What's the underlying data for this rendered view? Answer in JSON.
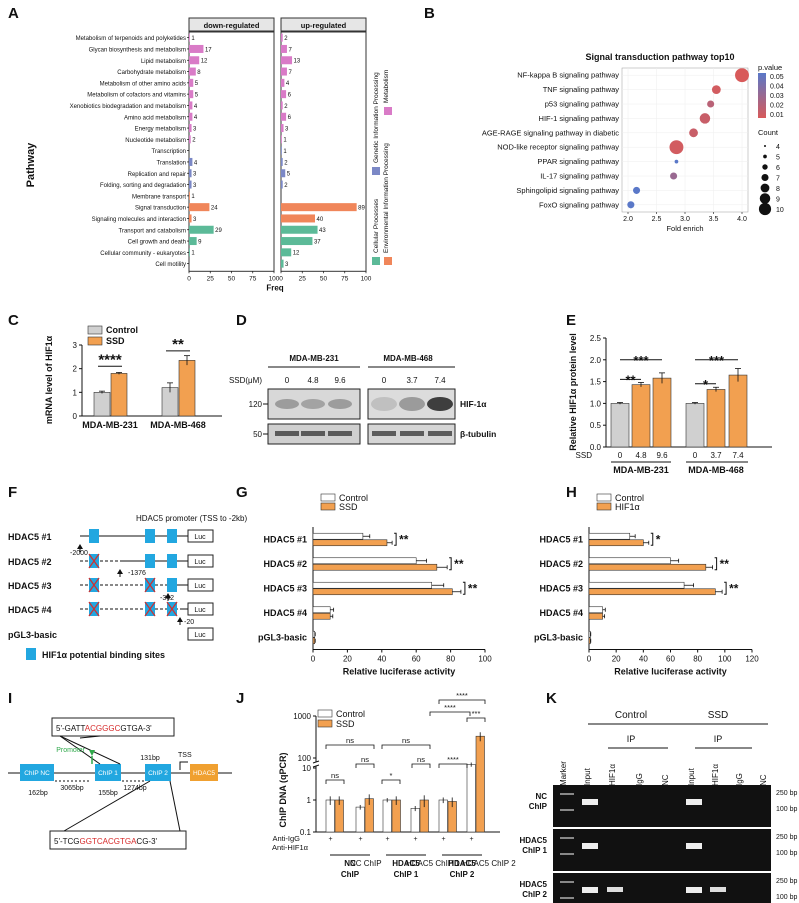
{
  "panels": {
    "A": "A",
    "B": "B",
    "C": "C",
    "D": "D",
    "E": "E",
    "F": "F",
    "G": "G",
    "H": "H",
    "I": "I",
    "J": "J",
    "K": "K"
  },
  "colors": {
    "metabolism": "#d97bc7",
    "genetic": "#7b88c6",
    "environmental": "#f0865a",
    "cellular": "#5cba98",
    "control": "#d0d0d0",
    "ssd": "#f2a050",
    "hif": "#f2a050"
  },
  "chart_data": [
    {
      "id": "A",
      "type": "bar",
      "title": "",
      "facets": [
        "down-regulated",
        "up-regulated"
      ],
      "ylabel": "Pathway",
      "xlabel": "Freq",
      "xticks": [
        "0",
        "25",
        "50",
        "75",
        "100"
      ],
      "categories": [
        "Metabolism of terpenoids and polyketides",
        "Glycan biosynthesis and metabolism",
        "Lipid metabolism",
        "Carbohydrate metabolism",
        "Metabolism of other amino acids",
        "Metabolism of cofactors and vitamins",
        "Xenobiotics biodegradation and metabolism",
        "Amino acid metabolism",
        "Energy metabolism",
        "Nucleotide metabolism",
        "Transcription",
        "Translation",
        "Replication and repair",
        "Folding, sorting and degradation",
        "Membrane transport",
        "Signal transduction",
        "Signaling molecules and interaction",
        "Transport and catabolism",
        "Cell growth and death",
        "Cellular community - eukaryotes",
        "Cell motility"
      ],
      "groups": [
        "M",
        "M",
        "M",
        "M",
        "M",
        "M",
        "M",
        "M",
        "M",
        "M",
        "G",
        "G",
        "G",
        "G",
        "E",
        "E",
        "E",
        "C",
        "C",
        "C",
        "C"
      ],
      "series": [
        {
          "name": "down-regulated",
          "values": [
            1,
            17,
            12,
            8,
            5,
            5,
            4,
            4,
            3,
            2,
            null,
            4,
            3,
            3,
            1,
            24,
            3,
            29,
            9,
            1,
            null
          ],
          "labels": [
            "1",
            "17",
            "12",
            "8",
            "5",
            "5",
            "4",
            "4",
            "3",
            "2",
            "",
            "4",
            "3",
            "3",
            "1",
            "24",
            "3",
            "29",
            "9",
            "1",
            ""
          ]
        },
        {
          "name": "up-regulated",
          "values": [
            2,
            7,
            13,
            7,
            4,
            6,
            2,
            6,
            3,
            1,
            1,
            2,
            5,
            2,
            null,
            89,
            40,
            43,
            37,
            12,
            3
          ],
          "labels": [
            "2",
            "7",
            "13",
            "7",
            "4",
            "6",
            "2",
            "6",
            "3",
            "1",
            "1",
            "2",
            "5",
            "2",
            "",
            "89",
            "40",
            "43",
            "37",
            "12",
            "3"
          ]
        }
      ],
      "legend": [
        "Metabolism",
        "Genetic Information Processing",
        "Environmental Information Processing",
        "Cellular Processes"
      ]
    },
    {
      "id": "B",
      "type": "scatter",
      "title": "Signal transduction pathway top10",
      "xlabel": "Fold enrich",
      "xticks": [
        "2.0",
        "2.5",
        "3.0",
        "3.5",
        "4.0"
      ],
      "xlim": [
        2.0,
        4.0
      ],
      "categories": [
        "NF-kappa B signaling pathway",
        "TNF signaling pathway",
        "p53 signaling pathway",
        "HIF-1 signaling pathway",
        "AGE-RAGE signaling pathway in diabetic",
        "NOD-like receptor signaling pathway",
        "PPAR signaling pathway",
        "IL-17 signaling pathway",
        "Sphingolipid signaling pathway",
        "FoxO signaling pathway"
      ],
      "x": [
        4.0,
        3.55,
        3.45,
        3.35,
        3.15,
        2.85,
        2.85,
        2.8,
        2.15,
        2.05
      ],
      "count": [
        10,
        7,
        6,
        8,
        7,
        10,
        4,
        6,
        6,
        6
      ],
      "p": [
        0.01,
        0.012,
        0.02,
        0.015,
        0.015,
        0.012,
        0.05,
        0.03,
        0.05,
        0.05
      ],
      "legend_p_title": "p.value",
      "legend_p": [
        "0.05",
        "0.04",
        "0.03",
        "0.02",
        "0.01"
      ],
      "legend_count_title": "Count",
      "legend_count": [
        "4",
        "5",
        "6",
        "7",
        "8",
        "9",
        "10"
      ]
    },
    {
      "id": "C",
      "type": "bar",
      "ylabel": "mRNA level of HIF1α",
      "categories": [
        "MDA-MB-231",
        "MDA-MB-468"
      ],
      "ylim": [
        0,
        3
      ],
      "yticks": [
        "0",
        "1",
        "2",
        "3"
      ],
      "series": [
        {
          "name": "Control",
          "values": [
            1.0,
            1.2
          ],
          "err": [
            0.05,
            0.2
          ]
        },
        {
          "name": "SSD",
          "values": [
            1.8,
            2.35
          ],
          "err": [
            0.04,
            0.2
          ]
        }
      ],
      "sig": [
        "****",
        "**"
      ]
    },
    {
      "id": "E",
      "type": "bar",
      "ylabel": "Relative HIF1α protein level",
      "ylim": [
        0,
        2.5
      ],
      "yticks": [
        "0.0",
        "0.5",
        "1.0",
        "1.5",
        "2.0",
        "2.5"
      ],
      "xrowlabel": "SSD",
      "groups": [
        "MDA-MB-231",
        "MDA-MB-468"
      ],
      "categories": [
        "0",
        "4.8",
        "9.6",
        "0",
        "3.7",
        "7.4"
      ],
      "values": [
        1.0,
        1.43,
        1.58,
        1.0,
        1.32,
        1.65
      ],
      "err": [
        0.02,
        0.05,
        0.12,
        0.02,
        0.05,
        0.15
      ],
      "sig": [
        "**",
        "***",
        "*",
        "***"
      ]
    },
    {
      "id": "G",
      "type": "bar",
      "orientation": "horizontal",
      "xlabel": "Relative luciferase activity",
      "xticks": [
        "0",
        "20",
        "40",
        "60",
        "80",
        "100"
      ],
      "xlim": [
        0,
        100
      ],
      "categories": [
        "HDAC5 #1",
        "HDAC5 #2",
        "HDAC5 #3",
        "HDAC5 #4",
        "pGL3-basic"
      ],
      "series": [
        {
          "name": "Control",
          "values": [
            29,
            60,
            69,
            10,
            1
          ],
          "err": [
            4,
            6,
            7,
            2,
            0.3
          ]
        },
        {
          "name": "SSD",
          "values": [
            43,
            72,
            81,
            10,
            1
          ],
          "err": [
            3,
            6,
            5,
            1.5,
            0.3
          ]
        }
      ],
      "sig": [
        "**",
        "**",
        "**",
        "",
        ""
      ]
    },
    {
      "id": "H",
      "type": "bar",
      "orientation": "horizontal",
      "xlabel": "Relative luciferase activity",
      "xticks": [
        "0",
        "20",
        "40",
        "60",
        "80",
        "100",
        "120"
      ],
      "xlim": [
        0,
        120
      ],
      "categories": [
        "HDAC5 #1",
        "HDAC5 #2",
        "HDAC5 #3",
        "HDAC5 #4",
        "pGL3-basic"
      ],
      "series": [
        {
          "name": "Control",
          "values": [
            30,
            60,
            70,
            10,
            1
          ],
          "err": [
            4,
            6,
            7,
            2,
            0.3
          ]
        },
        {
          "name": "HIF1α",
          "values": [
            40,
            86,
            93,
            10,
            1
          ],
          "err": [
            4,
            5,
            5,
            1.5,
            0.3
          ]
        }
      ],
      "sig": [
        "*",
        "**",
        "**",
        "",
        ""
      ]
    },
    {
      "id": "J",
      "type": "bar",
      "ylabel": "ChIP DNA (qPCR)",
      "yscale": "log-broken",
      "yticks": [
        "0.1",
        "1",
        "10",
        "100",
        "1000"
      ],
      "groups": [
        "NC ChIP",
        "HDAC5 ChIP 1",
        "HDAC5 ChIP 2"
      ],
      "rowlabels": [
        "Anti-IgG",
        "Anti-HIF1α"
      ],
      "series": [
        {
          "name": "Control",
          "values": [
            1.0,
            0.6,
            1.0,
            0.55,
            1.0,
            70
          ],
          "err": [
            0.3,
            0.1,
            0.15,
            0.1,
            0.2,
            8
          ]
        },
        {
          "name": "SSD",
          "values": [
            1.0,
            1.1,
            1.0,
            1.0,
            0.9,
            330
          ],
          "err": [
            0.3,
            0.4,
            0.3,
            0.4,
            0.3,
            80
          ]
        }
      ],
      "sig": [
        "ns",
        "ns",
        "ns",
        "*",
        "ns",
        "ns",
        "****",
        "****",
        "***",
        "****"
      ]
    }
  ],
  "A": {
    "down_title": "down-regulated",
    "up_title": "up-regulated",
    "legend": {
      "metabolism": "Metabolism",
      "genetic": "Genetic Information Processing",
      "environmental": "Environmental Information Processing",
      "cellular": "Cellular Processes"
    }
  },
  "B": {
    "title": "Signal transduction pathway top10",
    "p_title": "p.value",
    "count_title": "Count"
  },
  "C": {
    "legend_control": "Control",
    "legend_ssd": "SSD"
  },
  "D": {
    "cell1": "MDA-MB-231",
    "cell2": "MDA-MB-468",
    "ssd_label": "SSD(μM)",
    "doses": [
      "0",
      "4.8",
      "9.6",
      "0",
      "3.7",
      "7.4"
    ],
    "mw": [
      "120",
      "50"
    ],
    "targets": [
      "HIF-1α",
      "β-tubulin"
    ]
  },
  "F": {
    "promoter": "HDAC5 promoter  (TSS to -2kb)",
    "constructs": [
      "HDAC5 #1",
      "HDAC5 #2",
      "HDAC5 #3",
      "HDAC5 #4",
      "pGL3-basic"
    ],
    "luc": "Luc",
    "positions": [
      "-2000",
      "-1376",
      "-342",
      "-20"
    ],
    "legend": "HIF1α potential binding sites"
  },
  "G": {
    "legend_a": "Control",
    "legend_b": "SSD"
  },
  "H": {
    "legend_a": "Control",
    "legend_b": "HIF1α"
  },
  "I": {
    "seq1_a": "5'-GATT",
    "seq1_b": "ACGGGC",
    "seq1_c": "GTGA-3'",
    "seq2_a": "5'-TCG",
    "seq2_b": "GGTCACGTGA",
    "seq2_c": "CG-3'",
    "promoter": "Promoter",
    "tss": "TSS",
    "boxes": [
      "ChIP NC",
      "ChIP 1",
      "ChIP 2",
      "HDAC5"
    ],
    "distances": [
      "162bp",
      "3065bp",
      "155bp",
      "1274bp",
      "131bp"
    ]
  },
  "J": {
    "legend_a": "Control",
    "legend_b": "SSD"
  },
  "K": {
    "control": "Control",
    "ssd": "SSD",
    "ip": "IP",
    "lanes": [
      "Marker",
      "Input",
      "HIF1α",
      "IgG",
      "NC",
      "Input",
      "HIF1α",
      "IgG",
      "NC"
    ],
    "rows": [
      "NC\nChIP",
      "HDAC5\nChIP 1",
      "HDAC5\nChIP 2"
    ],
    "sizes": [
      "250 bp",
      "100 bp"
    ]
  }
}
